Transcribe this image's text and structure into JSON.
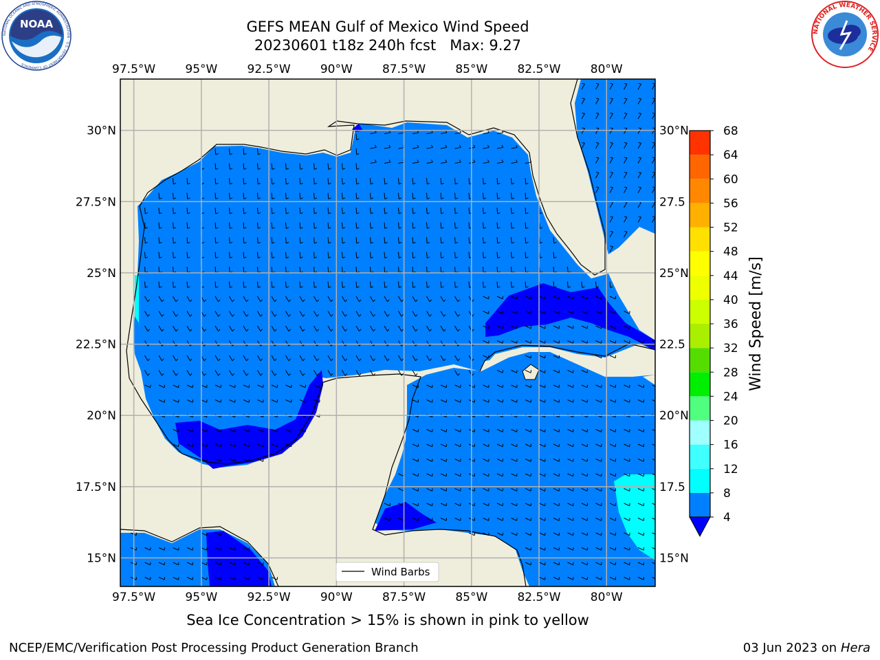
{
  "title": {
    "line1": "GEFS MEAN Gulf of Mexico Wind Speed",
    "line2": "20230601 t18z 240h fcst   Max: 9.27"
  },
  "subtitle": "Sea Ice Concentration > 15% is shown in pink to yellow",
  "credit": "NCEP/EMC/Verification Post Processing Product Generation Branch",
  "datestamp": {
    "date": "03 Jun 2023 on",
    "machine": "Hera"
  },
  "legend": {
    "label": "Wind Barbs"
  },
  "map": {
    "lon_range": [
      -98,
      -78.2
    ],
    "lat_range": [
      14,
      31.8
    ],
    "lon_ticks": [
      {
        "value": -97.5,
        "label": "97.5°W"
      },
      {
        "value": -95,
        "label": "95°W"
      },
      {
        "value": -92.5,
        "label": "92.5°W"
      },
      {
        "value": -90,
        "label": "90°W"
      },
      {
        "value": -87.5,
        "label": "87.5°W"
      },
      {
        "value": -85,
        "label": "85°W"
      },
      {
        "value": -82.5,
        "label": "82.5°W"
      },
      {
        "value": -80,
        "label": "80°W"
      }
    ],
    "lat_ticks": [
      {
        "value": 30,
        "label": "30°N"
      },
      {
        "value": 27.5,
        "label": "27.5°N"
      },
      {
        "value": 25,
        "label": "25°N"
      },
      {
        "value": 22.5,
        "label": "22.5°N"
      },
      {
        "value": 20,
        "label": "20°N"
      },
      {
        "value": 17.5,
        "label": "17.5°N"
      },
      {
        "value": 15,
        "label": "15°N"
      }
    ],
    "lat_ticks_right": [
      {
        "value": 30,
        "label": "30°N"
      },
      {
        "value": 27.5,
        "label": "27.5"
      },
      {
        "value": 25,
        "label": "25°N"
      },
      {
        "value": 22.5,
        "label": "22.5"
      },
      {
        "value": 20,
        "label": "20°N"
      },
      {
        "value": 17.5,
        "label": "17.5"
      },
      {
        "value": 15,
        "label": "15°N"
      }
    ],
    "colors": {
      "land": "#efeedc",
      "ocean_base": "#0080ff",
      "ocean_dark": "#0000ff",
      "ocean_light": "#00ffff",
      "grid": "#b0b0b0"
    }
  },
  "colorbar": {
    "label": "Wind Speed [m/s]",
    "levels": [
      4,
      8,
      12,
      16,
      20,
      24,
      28,
      32,
      36,
      40,
      44,
      48,
      52,
      56,
      60,
      64,
      68
    ],
    "colors": [
      "#0080ff",
      "#00ffff",
      "#40ffff",
      "#a0ffff",
      "#50ff80",
      "#00ee00",
      "#55dd00",
      "#aaee00",
      "#ccff00",
      "#eeff00",
      "#ffff00",
      "#ffe000",
      "#ffb000",
      "#ff8800",
      "#ff6600",
      "#ff3300"
    ],
    "top_color": "#ff0000",
    "under_color": "#0000ff"
  },
  "logos": {
    "noaa": {
      "center_text": "NOAA",
      "ring_text": "NATIONAL OCEANIC AND ATMOSPHERIC ADMINISTRATION · U.S. DEPARTMENT OF COMMERCE"
    },
    "nws": {
      "ring_text": "NATIONAL WEATHER SERVICE"
    }
  }
}
